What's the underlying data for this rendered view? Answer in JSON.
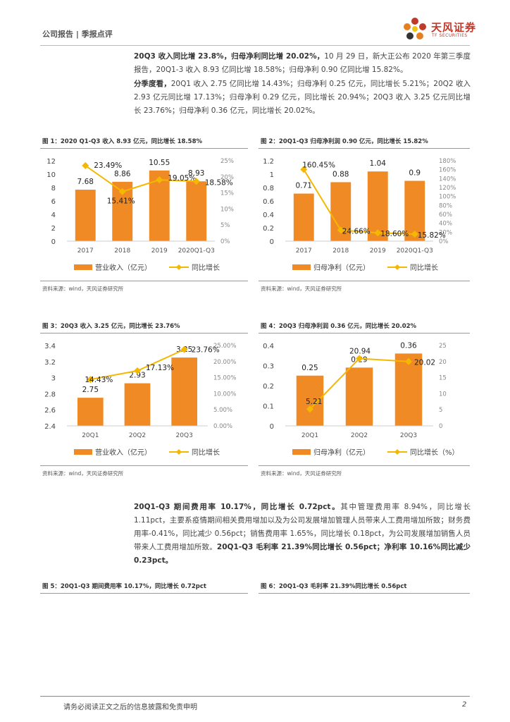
{
  "header": {
    "category": "公司报告",
    "divider": "|",
    "subcategory": "季报点评"
  },
  "logo": {
    "cn": "天风证券",
    "en": "TF SECURITIES"
  },
  "p1": {
    "lead": "20Q3 收入同比增 23.8%，归母净利同比增 20.02%，",
    "rest": "10 月 29 日，新大正公布 2020 年第三季度报告，20Q1-3 收入 8.93 亿同比增 18.58%；归母净利 0.90 亿同比增 15.82%。"
  },
  "p2": {
    "lead": "分季度看，",
    "rest": "20Q1 收入 2.75 亿同比增 14.43%；归母净利 0.25 亿元，同比增长 5.21%；20Q2 收入 2.93 亿元同比增 17.13%；归母净利 0.29 亿元，同比增长 20.94%；20Q3 收入 3.25 亿元同比增长 23.76%；归母净利 0.36 亿元，同比增长 20.02%。"
  },
  "p3": {
    "lead": "20Q1-Q3 期间费用率 10.17%，同比增长 0.72pct。",
    "mid": "其中管理费用率 8.94%，同比增长 1.11pct，主要系疫情期间相关费用增加以及为公司发展增加管理人员带来人工费用增加所致；财务费用率-0.41%，同比减少 0.56pct；销售费用率 1.65%，同比增长 0.18pct，为公司发展增加销售人员带来人工费用增加所致。",
    "tail": "20Q1-Q3 毛利率 21.39%同比增长 0.56pct；净利率 10.16%同比减少 0.23pct。"
  },
  "source": "资料来源：wind，天风证券研究所",
  "fig5_title": "图 5：20Q1-Q3 期间费用率 10.17%，同比增长 0.72pct",
  "fig6_title": "图 6：20Q1-Q3 毛利率 21.39%同比增长 0.56pct",
  "footer": {
    "disclaimer": "请务必阅读正文之后的信息披露和免责申明",
    "page": "2"
  },
  "colors": {
    "bar": "#f08a24",
    "line": "#f5b800",
    "rule": "#999999"
  },
  "chart_data": [
    {
      "type": "bar",
      "title": "图 1：2020 Q1-Q3 收入 8.93 亿元，同比增长 18.58%",
      "categories": [
        "2017",
        "2018",
        "2019",
        "2020Q1-Q3"
      ],
      "series": [
        {
          "name": "营业收入（亿元）",
          "values": [
            7.68,
            8.86,
            10.55,
            8.93
          ],
          "labels": [
            "7.68",
            "8.86",
            "10.55",
            "8.93"
          ]
        },
        {
          "name": "同比增长",
          "values": [
            23.49,
            15.41,
            19.05,
            18.58
          ],
          "labels": [
            "23.49%",
            "15.41%",
            "19.05%",
            "18.58%"
          ]
        }
      ],
      "yticks": [
        "12",
        "10",
        "8",
        "6",
        "4",
        "2",
        "0"
      ],
      "y2ticks": [
        "25%",
        "20%",
        "15%",
        "10%",
        "5%",
        "0%"
      ],
      "ylim": [
        0,
        12
      ],
      "y2lim": [
        0,
        25
      ]
    },
    {
      "type": "bar",
      "title": "图 2：20Q1-Q3 归母净利润 0.90 亿元，同比增长 15.82%",
      "categories": [
        "2017",
        "2018",
        "2019",
        "2020Q1-Q3"
      ],
      "series": [
        {
          "name": "归母净利（亿元）",
          "values": [
            0.71,
            0.88,
            1.04,
            0.9
          ],
          "labels": [
            "0.71",
            "0.88",
            "1.04",
            "0.9"
          ]
        },
        {
          "name": "同比增长",
          "values": [
            160.45,
            24.66,
            18.6,
            15.82
          ],
          "labels": [
            "160.45%",
            "24.66%",
            "18.60%",
            "15.82%"
          ]
        }
      ],
      "yticks": [
        "1.2",
        "1",
        "0.8",
        "0.6",
        "0.4",
        "0.2",
        "0"
      ],
      "y2ticks": [
        "180%",
        "160%",
        "140%",
        "120%",
        "100%",
        "80%",
        "60%",
        "40%",
        "20%",
        "0%"
      ],
      "ylim": [
        0,
        1.2
      ],
      "y2lim": [
        0,
        180
      ]
    },
    {
      "type": "bar",
      "title": "图 3：20Q3 收入 3.25 亿元，同比增长 23.76%",
      "categories": [
        "20Q1",
        "20Q2",
        "20Q3"
      ],
      "series": [
        {
          "name": "营业收入（亿元）",
          "values": [
            2.75,
            2.93,
            3.25
          ],
          "labels": [
            "2.75",
            "2.93",
            "3.25"
          ]
        },
        {
          "name": "同比增长",
          "values": [
            14.43,
            17.13,
            23.76
          ],
          "labels": [
            "14.43%",
            "17.13%",
            "23.76%"
          ]
        }
      ],
      "yticks": [
        "3.4",
        "3.2",
        "3",
        "2.8",
        "2.6",
        "2.4"
      ],
      "y2ticks": [
        "25.00%",
        "20.00%",
        "15.00%",
        "10.00%",
        "5.00%",
        "0.00%"
      ],
      "ylim": [
        2.4,
        3.4
      ],
      "y2lim": [
        0,
        25
      ]
    },
    {
      "type": "bar",
      "title": "图 4：20Q3 归母净利润 0.36 亿元，同比增长 20.02%",
      "categories": [
        "20Q1",
        "20Q2",
        "20Q3"
      ],
      "series": [
        {
          "name": "归母净利（亿元）",
          "values": [
            0.25,
            0.29,
            0.36
          ],
          "labels": [
            "0.25",
            "0.29",
            "0.36"
          ]
        },
        {
          "name": "同比增长（%）",
          "values": [
            5.21,
            20.94,
            20.02
          ],
          "labels": [
            "5.21",
            "20.94",
            "20.02"
          ]
        }
      ],
      "yticks": [
        "0.4",
        "0.3",
        "0.2",
        "0.1",
        "0"
      ],
      "y2ticks": [
        "25",
        "20",
        "15",
        "10",
        "5",
        "0"
      ],
      "ylim": [
        0,
        0.4
      ],
      "y2lim": [
        0,
        25
      ]
    }
  ]
}
